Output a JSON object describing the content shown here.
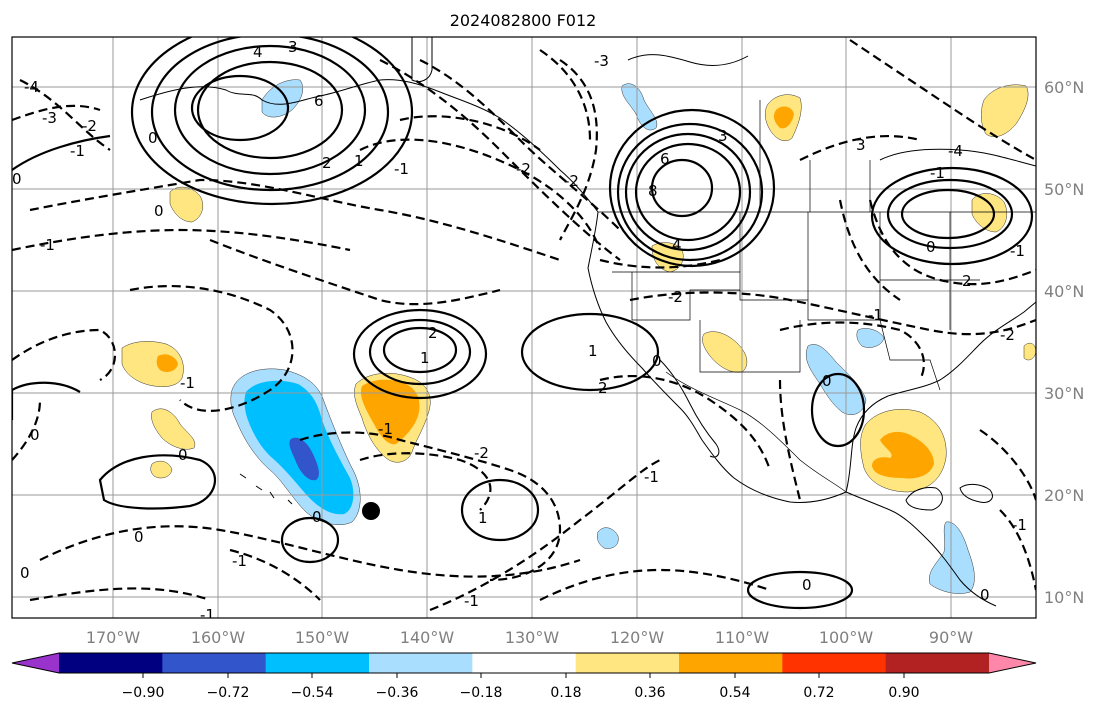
{
  "title": "2024082800 F012",
  "x_ticks": [
    "170°W",
    "160°W",
    "150°W",
    "140°W",
    "130°W",
    "120°W",
    "110°W",
    "100°W",
    "90°W"
  ],
  "y_ticks": [
    "60°N",
    "50°N",
    "40°N",
    "30°N",
    "20°N",
    "10°N"
  ],
  "colorbar": {
    "ticks": [
      "−0.90",
      "−0.72",
      "−0.54",
      "−0.36",
      "−0.18",
      "0.18",
      "0.36",
      "0.54",
      "0.72",
      "0.90"
    ],
    "colors": [
      "#9933cc",
      "#000080",
      "#3355cc",
      "#00bfff",
      "#aadeff",
      "#ffffff",
      "#ffe680",
      "#ffa500",
      "#ff3300",
      "#b22222",
      "#ff88aa"
    ]
  },
  "contour_labels": [
    {
      "text": "4"
    },
    {
      "text": "3"
    },
    {
      "text": "6"
    },
    {
      "text": "2"
    },
    {
      "text": "1"
    },
    {
      "text": "0"
    },
    {
      "text": "-3"
    },
    {
      "text": "-2"
    },
    {
      "text": "-1"
    },
    {
      "text": "-4"
    },
    {
      "text": "0"
    },
    {
      "text": "-1"
    },
    {
      "text": "0"
    },
    {
      "text": "2"
    },
    {
      "text": "1"
    },
    {
      "text": "-2"
    },
    {
      "text": "-1"
    },
    {
      "text": "6"
    },
    {
      "text": "8"
    },
    {
      "text": "4"
    },
    {
      "text": "3"
    },
    {
      "text": "-3"
    },
    {
      "text": "-2"
    },
    {
      "text": "1"
    },
    {
      "text": "2"
    },
    {
      "text": "0"
    },
    {
      "text": "1"
    },
    {
      "text": "-1"
    },
    {
      "text": "-2"
    },
    {
      "text": "0"
    },
    {
      "text": "0"
    },
    {
      "text": "-1"
    },
    {
      "text": "0"
    },
    {
      "text": "-1"
    },
    {
      "text": "0"
    },
    {
      "text": "0"
    },
    {
      "text": "-1"
    },
    {
      "text": "-1"
    },
    {
      "text": "0"
    },
    {
      "text": "-2"
    },
    {
      "text": "-1"
    },
    {
      "text": "0"
    },
    {
      "text": "-1"
    },
    {
      "text": "3"
    },
    {
      "text": "-4"
    },
    {
      "text": "-1"
    },
    {
      "text": "0"
    },
    {
      "text": "2"
    },
    {
      "text": "-1"
    },
    {
      "text": "-2"
    },
    {
      "text": "-1"
    },
    {
      "text": "0"
    }
  ]
}
